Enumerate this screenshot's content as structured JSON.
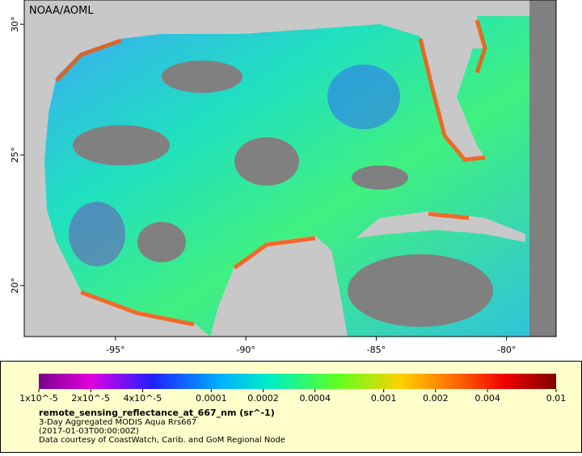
{
  "map": {
    "credit": "NOAA/AOML",
    "xlim": [
      -98.5,
      -78.1
    ],
    "ylim": [
      18.05,
      30.93
    ],
    "xticks": [
      {
        "value": -95,
        "label": "-95°"
      },
      {
        "value": -90,
        "label": "-90°"
      },
      {
        "value": -85,
        "label": "-85°"
      },
      {
        "value": -80,
        "label": "-80°"
      }
    ],
    "yticks": [
      {
        "value": 20,
        "label": "20°"
      },
      {
        "value": 25,
        "label": "25°"
      },
      {
        "value": 30,
        "label": "30°"
      }
    ]
  },
  "legend": {
    "clim": [
      1e-05,
      0.01
    ],
    "log_scale": true,
    "ticks": [
      {
        "value": 1e-05,
        "label": "1x10^-5"
      },
      {
        "value": 2e-05,
        "label": "2x10^-5"
      },
      {
        "value": 4e-05,
        "label": "4x10^-5"
      },
      0.0001,
      0.0002,
      0.0004,
      0.001,
      0.002,
      0.004,
      0.01
    ],
    "variable": "remote_sensing_reflectance_at_667_nm (sr^-1)",
    "description": "3-Day Aggregated MODIS Aqua Rrs667",
    "time": "(2017-01-03T00:00:00Z)",
    "source": "Data courtesy of CoastWatch, Carib. and GoM Regional Node"
  }
}
